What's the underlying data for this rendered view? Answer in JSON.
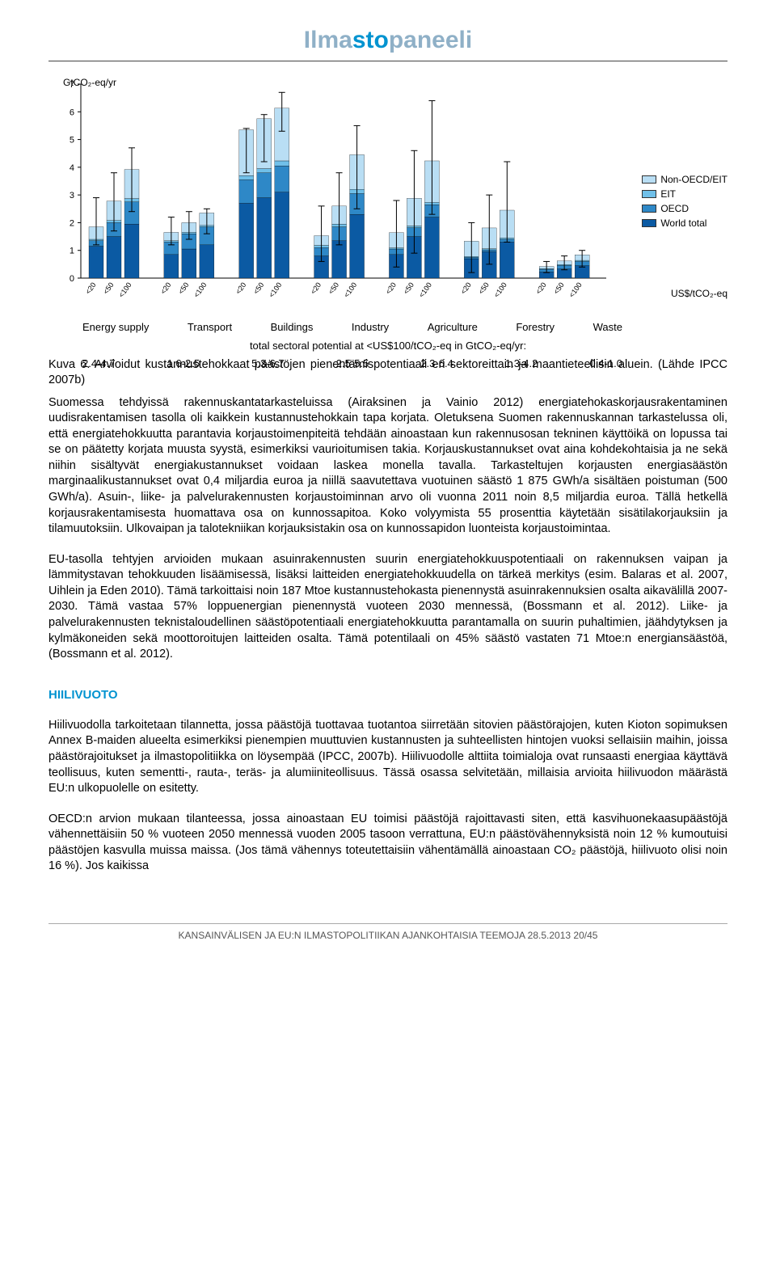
{
  "logo": {
    "pre": "Ilma",
    "accent": "sto",
    "post": "paneeli"
  },
  "chart": {
    "y_label": "GtCO₂-eq/yr",
    "x_label": "US$/tCO₂-eq",
    "ylim": [
      0,
      7
    ],
    "yticks": [
      0,
      1,
      2,
      3,
      4,
      5,
      6,
      7
    ],
    "sectors": [
      "Energy supply",
      "Transport",
      "Buildings",
      "Industry",
      "Agriculture",
      "Forestry",
      "Waste"
    ],
    "potential_text": "total sectoral potential at <US$100/tCO₂-eq in GtCO₂-eq/yr:",
    "potentials": [
      "2.4-4.7",
      "1.6-2.5",
      "5.3-6.7",
      "2.5-5.5",
      "2.3-6.4",
      "1.3-4.2",
      "0.4-1.0"
    ],
    "cost_bins": [
      "<20",
      "<50",
      "<100"
    ],
    "series": [
      {
        "name": "World total",
        "color": "#0b5aa3"
      },
      {
        "name": "OECD",
        "color": "#2e88c7"
      },
      {
        "name": "EIT",
        "color": "#70c0e9"
      },
      {
        "name": "Non-OECD/EIT",
        "color": "#b9def4"
      }
    ],
    "tick_color": "#888888",
    "grid_color": "#e0e0e0",
    "bar_border": "#000000",
    "error_bar_color": "#000000",
    "background_color": "#ffffff",
    "bars": [
      {
        "sector": 0,
        "bin": 0,
        "stack": [
          1.15,
          0.2,
          0.05,
          0.45
        ],
        "err": [
          1.2,
          2.9
        ]
      },
      {
        "sector": 0,
        "bin": 1,
        "stack": [
          1.5,
          0.5,
          0.08,
          0.7
        ],
        "err": [
          1.7,
          3.8
        ]
      },
      {
        "sector": 0,
        "bin": 2,
        "stack": [
          1.95,
          0.8,
          0.12,
          1.05
        ],
        "err": [
          2.4,
          4.7
        ]
      },
      {
        "sector": 1,
        "bin": 0,
        "stack": [
          0.85,
          0.45,
          0.05,
          0.3
        ],
        "err": [
          1.2,
          2.2
        ]
      },
      {
        "sector": 1,
        "bin": 1,
        "stack": [
          1.05,
          0.55,
          0.05,
          0.35
        ],
        "err": [
          1.4,
          2.4
        ]
      },
      {
        "sector": 1,
        "bin": 2,
        "stack": [
          1.2,
          0.65,
          0.05,
          0.45
        ],
        "err": [
          1.6,
          2.5
        ]
      },
      {
        "sector": 2,
        "bin": 0,
        "stack": [
          2.7,
          0.85,
          0.15,
          1.65
        ],
        "err": [
          3.8,
          5.4
        ]
      },
      {
        "sector": 2,
        "bin": 1,
        "stack": [
          2.9,
          0.9,
          0.15,
          1.8
        ],
        "err": [
          4.2,
          5.9
        ]
      },
      {
        "sector": 2,
        "bin": 2,
        "stack": [
          3.1,
          0.95,
          0.18,
          1.9
        ],
        "err": [
          5.3,
          6.7
        ]
      },
      {
        "sector": 3,
        "bin": 0,
        "stack": [
          0.8,
          0.3,
          0.08,
          0.35
        ],
        "err": [
          0.6,
          2.6
        ]
      },
      {
        "sector": 3,
        "bin": 1,
        "stack": [
          1.35,
          0.5,
          0.1,
          0.65
        ],
        "err": [
          1.2,
          3.8
        ]
      },
      {
        "sector": 3,
        "bin": 2,
        "stack": [
          2.3,
          0.75,
          0.15,
          1.25
        ],
        "err": [
          2.5,
          5.5
        ]
      },
      {
        "sector": 4,
        "bin": 0,
        "stack": [
          0.85,
          0.2,
          0.04,
          0.55
        ],
        "err": [
          0.4,
          2.8
        ]
      },
      {
        "sector": 4,
        "bin": 1,
        "stack": [
          1.5,
          0.32,
          0.06,
          1.0
        ],
        "err": [
          0.9,
          4.6
        ]
      },
      {
        "sector": 4,
        "bin": 2,
        "stack": [
          2.2,
          0.45,
          0.08,
          1.5
        ],
        "err": [
          2.3,
          6.4
        ]
      },
      {
        "sector": 5,
        "bin": 0,
        "stack": [
          0.7,
          0.05,
          0.03,
          0.55
        ],
        "err": [
          0.2,
          2.0
        ]
      },
      {
        "sector": 5,
        "bin": 1,
        "stack": [
          0.95,
          0.07,
          0.04,
          0.75
        ],
        "err": [
          0.5,
          3.0
        ]
      },
      {
        "sector": 5,
        "bin": 2,
        "stack": [
          1.3,
          0.1,
          0.05,
          1.0
        ],
        "err": [
          1.3,
          4.2
        ]
      },
      {
        "sector": 6,
        "bin": 0,
        "stack": [
          0.22,
          0.1,
          0.02,
          0.08
        ],
        "err": [
          0.2,
          0.6
        ]
      },
      {
        "sector": 6,
        "bin": 1,
        "stack": [
          0.33,
          0.13,
          0.03,
          0.13
        ],
        "err": [
          0.3,
          0.8
        ]
      },
      {
        "sector": 6,
        "bin": 2,
        "stack": [
          0.45,
          0.15,
          0.04,
          0.2
        ],
        "err": [
          0.4,
          1.0
        ]
      }
    ]
  },
  "legend_items": [
    {
      "label": "Non-OECD/EIT",
      "color": "#b9def4"
    },
    {
      "label": "EIT",
      "color": "#70c0e9"
    },
    {
      "label": "OECD",
      "color": "#2e88c7"
    },
    {
      "label": "World total",
      "color": "#0b5aa3"
    }
  ],
  "caption": "Kuva 6. Arvioidut kustannustehokkaat päästöjen pienentämispotentiaali eri sektoreittain ja maantieteellisin aluein. (Lähde IPCC 2007b)",
  "para1": "Suomessa tehdyissä rakennuskantatarkasteluissa (Airaksinen ja Vainio 2012) energiatehokaskorjausrakentaminen uudisrakentamisen tasolla oli kaikkein kustannustehokkain tapa korjata. Oletuksena Suomen rakennuskannan tarkastelussa oli, että energiatehokkuutta parantavia korjaustoimenpiteitä tehdään ainoastaan kun rakennusosan tekninen käyttöikä on lopussa tai se on päätetty korjata muusta syystä, esimerkiksi vaurioitumisen takia. Korjauskustannukset ovat aina kohdekohtaisia ja ne sekä niihin sisältyvät energiakustannukset voidaan laskea monella tavalla. Tarkasteltujen korjausten energiasäästön marginaalikustannukset ovat 0,4 miljardia euroa ja niillä saavutettava vuotuinen säästö 1 875 GWh/a sisältäen poistuman (500 GWh/a). Asuin-, liike- ja palvelurakennusten korjaustoiminnan arvo oli vuonna 2011 noin 8,5 miljardia euroa. Tällä hetkellä korjausrakentamisesta huomattava osa on kunnossapitoa. Koko volyymista 55 prosenttia käytetään sisätilakorjauksiin ja tilamuutoksiin. Ulkovaipan ja talotekniikan korjauksistakin osa on kunnossapidon luonteista korjaustoimintaa.",
  "para2": "EU-tasolla tehtyjen arvioiden mukaan asuinrakennusten suurin energiatehokkuuspotentiaali on rakennuksen vaipan ja lämmitystavan tehokkuuden lisäämisessä, lisäksi laitteiden energiatehokkuudella on tärkeä merkitys (esim. Balaras et al. 2007, Uihlein ja Eden 2010). Tämä tarkoittaisi noin 187 Mtoe kustannustehokasta pienennystä asuinrakennuksien osalta aikavälillä 2007-2030. Tämä vastaa 57% loppuenergian pienennystä vuoteen 2030 mennessä, (Bossmann et al. 2012). Liike- ja palvelurakennusten teknistaloudellinen säästöpotentiaali energiatehokkuutta parantamalla on suurin puhaltimien, jäähdytyksen ja kylmäkoneiden sekä moottoroitujen laitteiden osalta. Tämä potentilaali on 45% säästö vastaten 71 Mtoe:n energiansäästöä, (Bossmann et al. 2012).",
  "section_head": "HIILIVUOTO",
  "para3": "Hiilivuodolla tarkoitetaan tilannetta, jossa päästöjä tuottavaa tuotantoa siirretään sitovien päästörajojen, kuten Kioton sopimuksen Annex B-maiden alueelta esimerkiksi pienempien muuttuvien kustannusten ja suhteellisten hintojen vuoksi sellaisiin maihin, joissa päästörajoitukset ja ilmastopolitiikka on löysempää (IPCC, 2007b). Hiilivuodolle alttiita toimialoja ovat runsaasti energiaa käyttävä teollisuus, kuten sementti-, rauta-, teräs- ja alumiiniteollisuus. Tässä osassa selvitetään, millaisia arvioita hiilivuodon määrästä EU:n ulkopuolelle on esitetty.",
  "para4": "OECD:n arvion mukaan tilanteessa, jossa ainoastaan EU toimisi päästöjä rajoittavasti siten, että kasvihuonekaasupäästöjä vähennettäisiin 50 % vuoteen 2050 mennessä vuoden 2005 tasoon verrattuna, EU:n päästövähennyksistä noin 12 % kumoutuisi päästöjen kasvulla muissa maissa. (Jos tämä vähennys toteutettaisiin vähentämällä ainoastaan CO₂ päästöjä, hiilivuoto olisi noin 16 %). Jos kaikissa",
  "footer": "KANSAINVÄLISEN JA EU:N ILMASTOPOLITIIKAN AJANKOHTAISIA TEEMOJA  28.5.2013   20/45"
}
